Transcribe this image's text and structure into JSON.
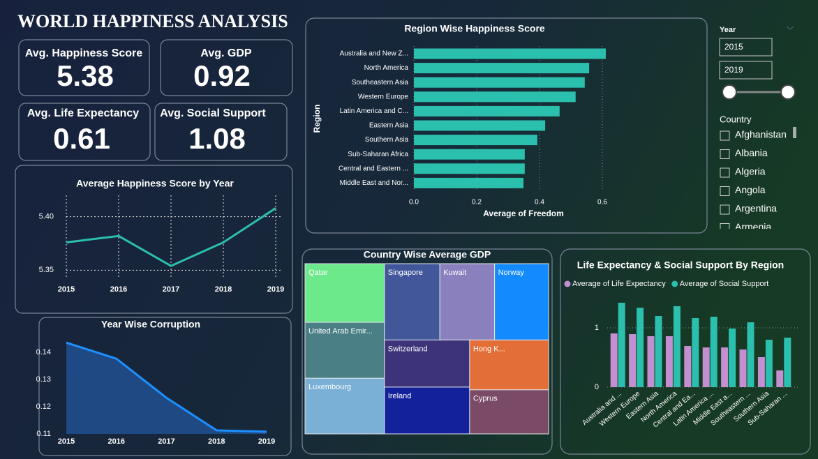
{
  "header": {
    "title": "WORLD HAPPINESS ANALYSIS"
  },
  "kpis": [
    {
      "label": "Avg. Happiness Score",
      "value": 5.38
    },
    {
      "label": "Avg. GDP",
      "value": 0.92
    },
    {
      "label": "Avg. Life Expectancy",
      "value": 0.61
    },
    {
      "label": "Avg. Social Support",
      "value": 1.08
    }
  ],
  "filters": {
    "year": {
      "label": "Year",
      "from": 2015,
      "to": 2019
    },
    "country": {
      "label": "Country",
      "items": [
        "Afghanistan",
        "Albania",
        "Algeria",
        "Angola",
        "Argentina",
        "Armenia"
      ]
    }
  },
  "chart_data": [
    {
      "type": "hbar",
      "title": "Region Wise Happiness Score",
      "x_label": "Average of Freedom",
      "y_label": "Region",
      "categories": [
        "Australia and New Z...",
        "North America",
        "Southeastern Asia",
        "Western Europe",
        "Latin America and C...",
        "Eastern Asia",
        "Southern Asia",
        "Sub-Saharan Africa",
        "Central and Eastern ...",
        "Middle East and Nor..."
      ],
      "values": [
        0.611,
        0.558,
        0.544,
        0.515,
        0.464,
        0.418,
        0.393,
        0.353,
        0.353,
        0.349
      ],
      "color": "#2bbfad",
      "xlim": [
        0,
        0.68
      ],
      "xticks": [
        {
          "value": 0,
          "label": "0.0"
        },
        0.2,
        0.4,
        0.6
      ],
      "grid": true
    },
    {
      "type": "line",
      "title": "Average Happiness Score by Year",
      "categories": [
        "2015",
        "2016",
        "2017",
        "2018",
        "2019"
      ],
      "values": [
        5.376,
        5.382,
        5.354,
        5.376,
        5.408
      ],
      "color": "#2bbfad",
      "ylim": [
        5.345,
        5.42
      ],
      "yticks": [
        5.35,
        {
          "value": 5.4,
          "label": "5.40"
        }
      ],
      "grid": true
    },
    {
      "type": "area",
      "title": "Year Wise Corruption",
      "categories": [
        "2015",
        "2016",
        "2017",
        "2018",
        "2019"
      ],
      "values": [
        0.1436,
        0.1377,
        0.1233,
        0.1113,
        0.1108
      ],
      "color": "#1e8fff",
      "fill": "#1f4e8c",
      "ylim": [
        0.11,
        0.147
      ],
      "yticks": [
        0.11,
        0.12,
        0.13,
        0.14
      ],
      "grid": false
    },
    {
      "type": "treemap",
      "title": "Country Wise Average GDP",
      "categories": [
        "Qatar",
        "United Arab Emir...",
        "Luxembourg",
        "Singapore",
        "Kuwait",
        "Norway",
        "Switzerland",
        "Ireland",
        "Hong K...",
        "Cyprus"
      ],
      "values": [
        1.74,
        1.66,
        1.65,
        1.58,
        1.56,
        1.54,
        1.5,
        1.49,
        1.47,
        1.3
      ],
      "colors": [
        "#6ce98a",
        "#4a7f86",
        "#7aafd6",
        "#42579a",
        "#8a80bd",
        "#138bff",
        "#3c337a",
        "#13229a",
        "#e46e37",
        "#7a4a66"
      ]
    },
    {
      "type": "grouped_bar",
      "title": "Life Expectancy & Social Support By Region",
      "categories": [
        "Australia and ...",
        "Western Europe",
        "Eastern Asia",
        "North America",
        "Central and Ea...",
        "Latin America ...",
        "Middle East a...",
        "Southeastern ...",
        "Southern Asia",
        "Sub-Saharan ..."
      ],
      "series": [
        {
          "name": "Average of Life Expectancy",
          "color": "#c38fd0",
          "values": [
            0.906,
            0.894,
            0.859,
            0.859,
            0.694,
            0.67,
            0.67,
            0.635,
            0.506,
            0.282
          ]
        },
        {
          "name": "Average of Social Support",
          "color": "#2bbfad",
          "values": [
            1.424,
            1.341,
            1.2,
            1.365,
            1.165,
            1.188,
            0.988,
            1.094,
            0.8,
            0.835
          ]
        }
      ],
      "ylim": [
        0,
        1.5
      ],
      "yticks": [
        0,
        1
      ],
      "grid": true
    }
  ]
}
